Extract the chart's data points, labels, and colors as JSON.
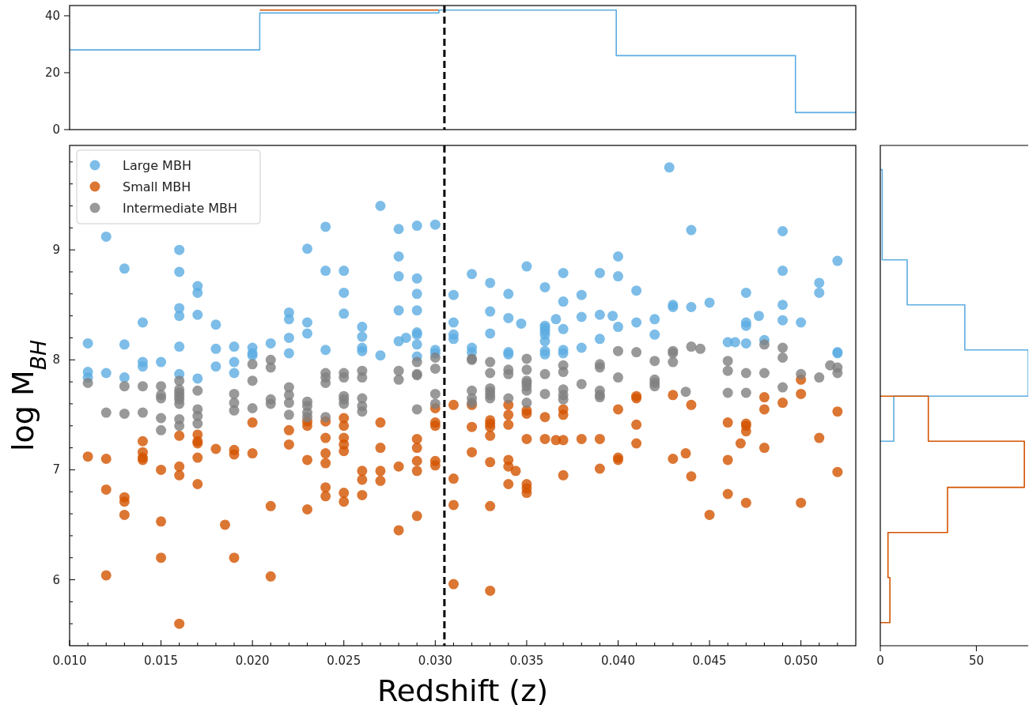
{
  "chart_data": [
    {
      "type": "step",
      "xlim": [
        0.01,
        0.053
      ],
      "ylim": [
        0,
        43.6
      ],
      "yticks": [
        0,
        20,
        40
      ],
      "tick_labels": "y",
      "ref_lines": [
        {
          "axis": "x",
          "value": 0.0305,
          "color": "#000000",
          "line_style": "dashed"
        }
      ],
      "series": [
        {
          "color": "#d35400",
          "x": [
            0.0204,
            0.0302
          ],
          "values": [
            42,
            42
          ]
        },
        {
          "color": "#5dade2",
          "x": [
            0.01,
            0.0204,
            0.0302,
            0.0399,
            0.0497,
            0.053
          ],
          "values": [
            28,
            41,
            42,
            26,
            6,
            6
          ]
        }
      ]
    },
    {
      "type": "scatter",
      "xlabel": "Redshift (z)",
      "ylabel": "log M$_{BH}$",
      "xlim": [
        0.01,
        0.053
      ],
      "ylim": [
        5.4,
        9.95
      ],
      "xticks": [
        {
          "value": 0.01,
          "label": "0.010"
        },
        {
          "value": 0.011,
          "label": null
        },
        {
          "value": 0.012,
          "label": null
        },
        {
          "value": 0.013,
          "label": null
        },
        {
          "value": 0.014,
          "label": null
        },
        {
          "value": 0.015,
          "label": "0.015"
        },
        {
          "value": 0.016,
          "label": null
        },
        {
          "value": 0.017,
          "label": null
        },
        {
          "value": 0.018,
          "label": null
        },
        {
          "value": 0.019,
          "label": null
        },
        {
          "value": 0.02,
          "label": "0.020"
        },
        {
          "value": 0.021,
          "label": null
        },
        {
          "value": 0.022,
          "label": null
        },
        {
          "value": 0.023,
          "label": null
        },
        {
          "value": 0.024,
          "label": null
        },
        {
          "value": 0.025,
          "label": "0.025"
        },
        {
          "value": 0.026,
          "label": null
        },
        {
          "value": 0.027,
          "label": null
        },
        {
          "value": 0.028,
          "label": null
        },
        {
          "value": 0.029,
          "label": null
        },
        {
          "value": 0.03,
          "label": "0.030"
        },
        {
          "value": 0.031,
          "label": null
        },
        {
          "value": 0.032,
          "label": null
        },
        {
          "value": 0.033,
          "label": null
        },
        {
          "value": 0.034,
          "label": null
        },
        {
          "value": 0.035,
          "label": "0.035"
        },
        {
          "value": 0.036,
          "label": null
        },
        {
          "value": 0.037,
          "label": null
        },
        {
          "value": 0.038,
          "label": null
        },
        {
          "value": 0.039,
          "label": null
        },
        {
          "value": 0.04,
          "label": "0.040"
        },
        {
          "value": 0.041,
          "label": null
        },
        {
          "value": 0.042,
          "label": null
        },
        {
          "value": 0.043,
          "label": null
        },
        {
          "value": 0.044,
          "label": null
        },
        {
          "value": 0.045,
          "label": "0.045"
        },
        {
          "value": 0.046,
          "label": null
        },
        {
          "value": 0.047,
          "label": null
        },
        {
          "value": 0.048,
          "label": null
        },
        {
          "value": 0.049,
          "label": null
        },
        {
          "value": 0.05,
          "label": "0.050"
        },
        {
          "value": 0.051,
          "label": null
        },
        {
          "value": 0.052,
          "label": null
        }
      ],
      "yticks": [
        {
          "value": 5.6,
          "label": null
        },
        {
          "value": 5.8,
          "label": null
        },
        6,
        {
          "value": 6.2,
          "label": null
        },
        {
          "value": 6.4,
          "label": null
        },
        {
          "value": 6.6,
          "label": null
        },
        {
          "value": 6.8,
          "label": null
        },
        7,
        {
          "value": 7.2,
          "label": null
        },
        {
          "value": 7.4,
          "label": null
        },
        {
          "value": 7.6,
          "label": null
        },
        {
          "value": 7.8,
          "label": null
        },
        8,
        {
          "value": 8.2,
          "label": null
        },
        {
          "value": 8.4,
          "label": null
        },
        {
          "value": 8.6,
          "label": null
        },
        {
          "value": 8.8,
          "label": null
        },
        9,
        {
          "value": 9.2,
          "label": null
        },
        {
          "value": 9.4,
          "label": null
        },
        {
          "value": 9.6,
          "label": null
        },
        {
          "value": 9.8,
          "label": null
        }
      ],
      "marker": "circle",
      "legend": "top left",
      "ref_lines": [
        {
          "axis": "x",
          "value": 0.0305,
          "color": "#000000",
          "line_style": "dashed"
        }
      ],
      "series": [
        {
          "name": "Large MBH",
          "color": "#5dade2",
          "x": [
            0.011,
            0.011,
            0.011,
            0.012,
            0.012,
            0.013,
            0.013,
            0.013,
            0.014,
            0.014,
            0.014,
            0.015,
            0.016,
            0.016,
            0.016,
            0.016,
            0.016,
            0.016,
            0.017,
            0.017,
            0.017,
            0.017,
            0.018,
            0.018,
            0.018,
            0.019,
            0.019,
            0.019,
            0.02,
            0.02,
            0.02,
            0.021,
            0.022,
            0.022,
            0.022,
            0.022,
            0.023,
            0.023,
            0.023,
            0.024,
            0.024,
            0.024,
            0.025,
            0.025,
            0.025,
            0.026,
            0.026,
            0.026,
            0.026,
            0.027,
            0.027,
            0.028,
            0.028,
            0.028,
            0.028,
            0.028,
            0.0284,
            0.029,
            0.029,
            0.029,
            0.029,
            0.029,
            0.029,
            0.029,
            0.029,
            0.03,
            0.03,
            0.03,
            0.031,
            0.031,
            0.031,
            0.031,
            0.032,
            0.032,
            0.032,
            0.033,
            0.033,
            0.033,
            0.034,
            0.034,
            0.034,
            0.034,
            0.0347,
            0.035,
            0.036,
            0.036,
            0.036,
            0.036,
            0.036,
            0.036,
            0.036,
            0.036,
            0.0366,
            0.037,
            0.037,
            0.037,
            0.037,
            0.037,
            0.038,
            0.038,
            0.038,
            0.039,
            0.039,
            0.039,
            0.0397,
            0.04,
            0.04,
            0.04,
            0.041,
            0.041,
            0.042,
            0.042,
            0.0428,
            0.043,
            0.043,
            0.044,
            0.044,
            0.045,
            0.046,
            0.0464,
            0.047,
            0.047,
            0.047,
            0.047,
            0.0477,
            0.048,
            0.049,
            0.049,
            0.049,
            0.049,
            0.05,
            0.051,
            0.051,
            0.052,
            0.052,
            0.052
          ],
          "values": [
            8.15,
            7.89,
            7.84,
            9.12,
            7.88,
            8.83,
            8.14,
            7.84,
            8.34,
            7.98,
            7.94,
            7.98,
            9.0,
            8.8,
            8.47,
            8.4,
            8.12,
            7.87,
            8.67,
            8.61,
            8.41,
            7.83,
            8.32,
            8.1,
            7.94,
            8.12,
            7.98,
            7.88,
            8.11,
            8.06,
            8.04,
            8.15,
            8.43,
            8.37,
            8.2,
            8.06,
            9.01,
            8.34,
            8.24,
            9.21,
            8.81,
            8.09,
            8.81,
            8.61,
            8.42,
            8.3,
            8.21,
            8.11,
            8.08,
            9.4,
            8.04,
            9.19,
            8.94,
            8.76,
            8.45,
            8.17,
            8.2,
            9.22,
            8.74,
            8.6,
            8.45,
            8.25,
            8.23,
            8.14,
            8.03,
            9.23,
            8.09,
            8.06,
            8.59,
            8.34,
            8.23,
            8.19,
            8.78,
            8.11,
            8.07,
            8.7,
            8.44,
            8.24,
            8.6,
            8.38,
            8.07,
            8.05,
            8.33,
            8.85,
            8.66,
            8.31,
            8.29,
            8.26,
            8.23,
            8.17,
            8.08,
            8.05,
            8.37,
            8.79,
            8.53,
            8.28,
            8.09,
            8.06,
            8.59,
            8.39,
            8.11,
            8.79,
            8.41,
            8.19,
            8.4,
            8.94,
            8.76,
            8.3,
            8.63,
            8.34,
            8.37,
            8.23,
            9.75,
            8.5,
            8.48,
            9.18,
            8.48,
            8.52,
            8.16,
            8.16,
            8.61,
            8.34,
            8.31,
            8.15,
            8.4,
            8.18,
            9.17,
            8.81,
            8.5,
            8.36,
            8.34,
            8.7,
            8.61,
            8.9,
            8.07,
            8.06
          ]
        },
        {
          "name": "Small MBH",
          "color": "#d35400",
          "x": [
            0.011,
            0.012,
            0.012,
            0.012,
            0.013,
            0.013,
            0.013,
            0.014,
            0.014,
            0.014,
            0.014,
            0.015,
            0.015,
            0.015,
            0.016,
            0.016,
            0.016,
            0.016,
            0.017,
            0.017,
            0.017,
            0.017,
            0.017,
            0.018,
            0.0185,
            0.019,
            0.019,
            0.019,
            0.02,
            0.02,
            0.021,
            0.021,
            0.022,
            0.022,
            0.023,
            0.023,
            0.023,
            0.023,
            0.024,
            0.024,
            0.024,
            0.024,
            0.024,
            0.024,
            0.025,
            0.025,
            0.025,
            0.025,
            0.025,
            0.025,
            0.025,
            0.026,
            0.026,
            0.026,
            0.027,
            0.027,
            0.027,
            0.027,
            0.028,
            0.028,
            0.029,
            0.029,
            0.029,
            0.029,
            0.029,
            0.03,
            0.03,
            0.03,
            0.03,
            0.03,
            0.031,
            0.031,
            0.031,
            0.031,
            0.032,
            0.032,
            0.032,
            0.033,
            0.033,
            0.033,
            0.033,
            0.033,
            0.033,
            0.033,
            0.034,
            0.034,
            0.034,
            0.034,
            0.034,
            0.034,
            0.0344,
            0.035,
            0.035,
            0.035,
            0.035,
            0.035,
            0.035,
            0.036,
            0.036,
            0.0366,
            0.037,
            0.037,
            0.037,
            0.037,
            0.038,
            0.039,
            0.039,
            0.04,
            0.04,
            0.04,
            0.041,
            0.041,
            0.041,
            0.041,
            0.043,
            0.043,
            0.0437,
            0.044,
            0.044,
            0.045,
            0.046,
            0.046,
            0.046,
            0.0467,
            0.047,
            0.047,
            0.047,
            0.047,
            0.048,
            0.048,
            0.048,
            0.049,
            0.05,
            0.05,
            0.05,
            0.051,
            0.052,
            0.052
          ],
          "values": [
            7.12,
            7.1,
            6.82,
            6.04,
            6.75,
            6.71,
            6.59,
            7.26,
            7.16,
            7.11,
            7.09,
            7.0,
            6.53,
            6.2,
            7.31,
            7.03,
            6.95,
            5.6,
            7.32,
            7.26,
            7.24,
            7.11,
            6.87,
            7.19,
            6.5,
            7.18,
            7.14,
            6.2,
            7.43,
            7.15,
            6.67,
            6.03,
            7.36,
            7.23,
            7.44,
            7.4,
            7.09,
            6.64,
            7.44,
            7.29,
            7.15,
            7.06,
            6.84,
            6.76,
            7.47,
            7.4,
            7.29,
            7.23,
            7.17,
            6.79,
            6.71,
            6.99,
            6.91,
            6.77,
            7.43,
            7.2,
            6.99,
            6.9,
            7.03,
            6.45,
            7.28,
            7.2,
            7.08,
            6.99,
            6.58,
            7.56,
            7.43,
            7.4,
            7.08,
            7.04,
            7.59,
            6.92,
            6.68,
            5.96,
            7.59,
            7.39,
            7.16,
            7.45,
            7.42,
            7.39,
            7.31,
            7.07,
            6.67,
            5.9,
            7.59,
            7.5,
            7.41,
            7.09,
            7.03,
            6.87,
            6.99,
            7.54,
            7.51,
            7.28,
            6.87,
            6.83,
            6.79,
            7.48,
            7.28,
            7.27,
            7.55,
            7.5,
            7.27,
            6.95,
            7.28,
            7.28,
            7.01,
            7.55,
            7.11,
            7.09,
            7.67,
            7.65,
            7.41,
            7.24,
            7.68,
            7.1,
            7.15,
            7.59,
            6.94,
            6.59,
            7.43,
            7.09,
            6.78,
            7.24,
            7.42,
            7.4,
            7.35,
            6.7,
            7.66,
            7.55,
            7.2,
            7.61,
            7.82,
            7.69,
            6.7,
            7.29,
            7.53,
            6.98
          ]
        },
        {
          "name": "Intermediate MBH",
          "color": "#808080",
          "x": [
            0.011,
            0.012,
            0.013,
            0.013,
            0.014,
            0.014,
            0.015,
            0.015,
            0.015,
            0.015,
            0.015,
            0.016,
            0.016,
            0.016,
            0.016,
            0.016,
            0.016,
            0.016,
            0.016,
            0.017,
            0.017,
            0.017,
            0.017,
            0.019,
            0.019,
            0.019,
            0.02,
            0.02,
            0.02,
            0.021,
            0.021,
            0.021,
            0.021,
            0.022,
            0.022,
            0.022,
            0.022,
            0.023,
            0.023,
            0.023,
            0.023,
            0.024,
            0.024,
            0.024,
            0.024,
            0.025,
            0.025,
            0.025,
            0.025,
            0.025,
            0.026,
            0.026,
            0.026,
            0.026,
            0.026,
            0.028,
            0.028,
            0.029,
            0.029,
            0.029,
            0.029,
            0.03,
            0.03,
            0.03,
            0.03,
            0.032,
            0.032,
            0.032,
            0.032,
            0.032,
            0.033,
            0.033,
            0.033,
            0.033,
            0.033,
            0.033,
            0.034,
            0.034,
            0.034,
            0.035,
            0.035,
            0.035,
            0.035,
            0.035,
            0.035,
            0.035,
            0.036,
            0.036,
            0.037,
            0.037,
            0.037,
            0.037,
            0.037,
            0.038,
            0.039,
            0.039,
            0.039,
            0.039,
            0.039,
            0.04,
            0.04,
            0.041,
            0.042,
            0.042,
            0.042,
            0.042,
            0.043,
            0.043,
            0.043,
            0.0437,
            0.044,
            0.0445,
            0.046,
            0.046,
            0.046,
            0.047,
            0.047,
            0.048,
            0.048,
            0.049,
            0.049,
            0.049,
            0.05,
            0.051,
            0.0516,
            0.052,
            0.052
          ],
          "values": [
            7.79,
            7.52,
            7.76,
            7.51,
            7.76,
            7.52,
            7.76,
            7.68,
            7.65,
            7.47,
            7.36,
            7.81,
            7.73,
            7.7,
            7.67,
            7.64,
            7.6,
            7.46,
            7.4,
            7.72,
            7.55,
            7.49,
            7.42,
            7.69,
            7.61,
            7.54,
            7.96,
            7.81,
            7.56,
            8.0,
            7.93,
            7.64,
            7.6,
            7.75,
            7.68,
            7.61,
            7.5,
            7.62,
            7.58,
            7.52,
            7.48,
            7.88,
            7.84,
            7.79,
            7.48,
            7.88,
            7.84,
            7.67,
            7.64,
            7.6,
            7.9,
            7.84,
            7.65,
            7.58,
            7.53,
            7.9,
            7.82,
            7.98,
            7.87,
            7.86,
            7.55,
            8.02,
            7.92,
            7.69,
            7.6,
            8.01,
            8.0,
            7.72,
            7.65,
            7.61,
            7.98,
            7.88,
            7.74,
            7.71,
            7.68,
            7.65,
            7.91,
            7.87,
            7.65,
            8.01,
            7.91,
            7.81,
            7.79,
            7.76,
            7.72,
            7.61,
            7.87,
            7.69,
            7.95,
            7.89,
            7.73,
            7.68,
            7.64,
            7.78,
            7.96,
            7.93,
            7.72,
            7.68,
            7.66,
            8.08,
            7.84,
            8.07,
            7.99,
            7.82,
            7.79,
            7.76,
            8.08,
            8.06,
            7.98,
            7.71,
            8.12,
            8.1,
            7.99,
            7.9,
            7.7,
            7.88,
            7.7,
            8.14,
            7.88,
            8.11,
            8.02,
            7.75,
            7.87,
            7.84,
            7.95,
            7.93,
            7.88
          ]
        }
      ]
    },
    {
      "type": "line",
      "xlim": [
        0,
        77
      ],
      "xticks": [
        0,
        50
      ],
      "ylim": [
        5.4,
        9.95
      ],
      "tick_labels": "x",
      "series": [
        {
          "color": "#5dade2",
          "x": [
            0,
            7,
            7,
            77,
            77,
            44,
            44,
            14,
            14,
            1,
            1,
            0
          ],
          "values": [
            7.26,
            7.26,
            7.67,
            7.67,
            8.09,
            8.09,
            8.5,
            8.5,
            8.91,
            8.91,
            9.73,
            9.73
          ]
        },
        {
          "color": "#d35400",
          "x": [
            0,
            5,
            5,
            4,
            4,
            35,
            35,
            75,
            75,
            25,
            25,
            0
          ],
          "values": [
            5.61,
            5.61,
            6.02,
            6.02,
            6.43,
            6.43,
            6.84,
            6.84,
            7.26,
            7.26,
            7.67,
            7.67
          ]
        }
      ]
    }
  ]
}
